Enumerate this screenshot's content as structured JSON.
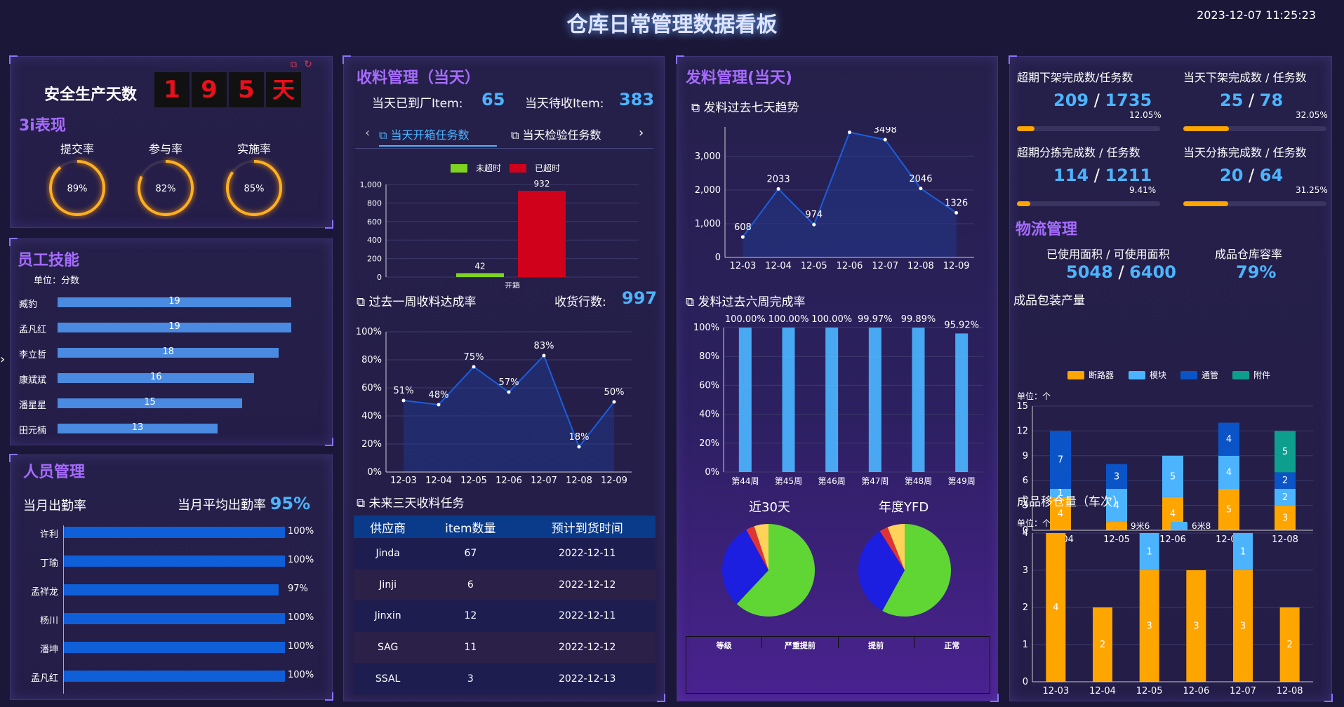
{
  "header": {
    "title": "仓库日常管理数据看板",
    "datetime": "2023-12-07 11:25:23"
  },
  "safety": {
    "label": "安全生产天数",
    "digits": [
      "1",
      "9",
      "5",
      "天"
    ]
  },
  "three_i": {
    "title": "3i表现",
    "items": [
      {
        "label": "提交率",
        "pct": 89,
        "text": "89%"
      },
      {
        "label": "参与率",
        "pct": 82,
        "text": "82%"
      },
      {
        "label": "实施率",
        "pct": 85,
        "text": "85%"
      }
    ]
  },
  "skills": {
    "title": "员工技能",
    "unit": "单位：分数",
    "max": 20,
    "rows": [
      {
        "name": "臧豹",
        "value": 19
      },
      {
        "name": "孟凡红",
        "value": 19
      },
      {
        "name": "李立哲",
        "value": 18
      },
      {
        "name": "康斌斌",
        "value": 16
      },
      {
        "name": "潘星星",
        "value": 15
      },
      {
        "name": "田元楠",
        "value": 13
      }
    ]
  },
  "staff": {
    "title": "人员管理",
    "monthly_label": "当月出勤率",
    "avg_label": "当月平均出勤率",
    "avg_value": "95%",
    "rows": [
      {
        "name": "许利",
        "pct": 100,
        "text": "100%"
      },
      {
        "name": "丁瑜",
        "pct": 100,
        "text": "100%"
      },
      {
        "name": "孟祥龙",
        "pct": 97,
        "text": "97%"
      },
      {
        "name": "杨川",
        "pct": 100,
        "text": "100%"
      },
      {
        "name": "潘坤",
        "pct": 100,
        "text": "100%"
      },
      {
        "name": "孟凡红",
        "pct": 100,
        "text": "100%"
      }
    ]
  },
  "receiving": {
    "title": "收料管理（当天）",
    "arrived_label": "当天已到厂Item:",
    "arrived": "65",
    "pending_label": "当天待收Item:",
    "pending": "383",
    "tab_prev": "‹",
    "tab_next": "›",
    "tab1": "当天开箱任务数",
    "tab2": "当天检验任务数",
    "legend_a": "未超时",
    "legend_b": "已超时",
    "week_title": "过去一周收料达成率",
    "rows_label": "收货行数:",
    "rows_value": "997",
    "future_title": "未来三天收料任务",
    "table_headers": [
      "供应商",
      "item数量",
      "预计到货时间"
    ],
    "table_rows": [
      [
        "Jinda",
        "67",
        "2022-12-11"
      ],
      [
        "Jinji",
        "6",
        "2022-12-12"
      ],
      [
        "Jinxin",
        "12",
        "2022-12-11"
      ],
      [
        "SAG",
        "11",
        "2022-12-12"
      ],
      [
        "SSAL",
        "3",
        "2022-12-13"
      ]
    ]
  },
  "shipping": {
    "title": "发料管理(当天)",
    "trend_title": "发料过去七天趋势",
    "six_title": "发料过去六周完成率",
    "pie1_label": "近30天",
    "pie2_label": "年度YFD",
    "table_headers": [
      "等级",
      "严重提前",
      "提前",
      "正常"
    ]
  },
  "right": {
    "kpis": [
      {
        "label": "超期下架完成数/任务数",
        "a": "209",
        "b": "1735",
        "pct_text": "12.05%",
        "pct": 12.05
      },
      {
        "label": "当天下架完成数 / 任务数",
        "a": "25",
        "b": "78",
        "pct_text": "32.05%",
        "pct": 32.05
      },
      {
        "label": "超期分拣完成数 / 任务数",
        "a": "114",
        "b": "1211",
        "pct_text": "9.41%",
        "pct": 9.41
      },
      {
        "label": "当天分拣完成数 / 任务数",
        "a": "20",
        "b": "64",
        "pct_text": "31.25%",
        "pct": 31.25
      }
    ],
    "sep": "/",
    "logistics_title": "物流管理",
    "area_label": "已使用面积 / 可使用面积",
    "area_used": "5048",
    "area_total": "6400",
    "capacity_label": "成品仓库容率",
    "capacity": "79%",
    "pack_title": "成品包装产量",
    "pack_unit": "单位：个",
    "move_title": "成品移仓量（车次）",
    "move_unit": "单位：个"
  },
  "colors": {
    "accent": "#4cb4ff",
    "title": "#a66bff",
    "orange": "#ffa500",
    "green": "#7ed321",
    "red": "#d0021b"
  },
  "chart_data": [
    {
      "type": "bar",
      "id": "open_box",
      "categories": [
        "开箱"
      ],
      "series": [
        {
          "name": "未超时",
          "values": [
            42
          ]
        },
        {
          "name": "已超时",
          "values": [
            932
          ]
        }
      ],
      "ylim": [
        0,
        1000
      ],
      "yticks": [
        "0",
        "200",
        "400",
        "600",
        "800",
        "1,000"
      ]
    },
    {
      "type": "area",
      "id": "receive_rate",
      "x": [
        "12-03",
        "12-04",
        "12-05",
        "12-06",
        "12-07",
        "12-08",
        "12-09"
      ],
      "values": [
        51,
        48,
        75,
        57,
        83,
        18,
        50
      ],
      "labels": [
        "51%",
        "48%",
        "75%",
        "57%",
        "83%",
        "18%",
        "50%"
      ],
      "ylim": [
        0,
        100
      ],
      "yticks": [
        "0%",
        "20%",
        "40%",
        "60%",
        "80%",
        "100%"
      ]
    },
    {
      "type": "area",
      "id": "ship_trend",
      "x": [
        "12-03",
        "12-04",
        "12-05",
        "12-06",
        "12-07",
        "12-08",
        "12-09"
      ],
      "values": [
        608,
        2033,
        974,
        3715,
        3498,
        2046,
        1326
      ],
      "ylim": [
        0,
        4000
      ],
      "yticks": [
        "0",
        "1,000",
        "2,000",
        "3,000",
        "4,000"
      ]
    },
    {
      "type": "bar",
      "id": "ship_weekly",
      "categories": [
        "第44周",
        "第45周",
        "第46周",
        "第47周",
        "第48周",
        "第49周"
      ],
      "values": [
        100,
        100,
        100,
        99.97,
        99.89,
        95.92
      ],
      "labels": [
        "100.00%",
        "100.00%",
        "100.00%",
        "99.97%",
        "99.89%",
        "95.92%"
      ],
      "ylim": [
        0,
        100
      ],
      "yticks": [
        "0%",
        "20%",
        "40%",
        "60%",
        "80%",
        "100%"
      ]
    },
    {
      "type": "pie",
      "id": "pie30",
      "values": [
        62,
        30,
        3,
        5
      ],
      "colors": [
        "#5fd634",
        "#1c1ee0",
        "#e03434",
        "#ffd25a"
      ]
    },
    {
      "type": "pie",
      "id": "pieYFD",
      "values": [
        58,
        33,
        3,
        6
      ],
      "colors": [
        "#5fd634",
        "#1c1ee0",
        "#e03434",
        "#ffd25a"
      ]
    },
    {
      "type": "bar",
      "id": "pack",
      "stacked": true,
      "categories": [
        "12-04",
        "12-05",
        "12-06",
        "12-07",
        "12-08"
      ],
      "series": [
        {
          "name": "断路器",
          "color": "#ffa500",
          "values": [
            4,
            1,
            4,
            5,
            3
          ]
        },
        {
          "name": "模块",
          "color": "#4cb4ff",
          "values": [
            1,
            4,
            5,
            4,
            2
          ]
        },
        {
          "name": "通管",
          "color": "#0a54c8",
          "values": [
            7,
            3,
            0,
            4,
            2
          ]
        },
        {
          "name": "附件",
          "color": "#0e9e8e",
          "values": [
            0,
            0,
            0,
            0,
            5
          ]
        }
      ],
      "ylim": [
        0,
        15
      ],
      "yticks": [
        "0",
        "3",
        "6",
        "9",
        "12",
        "15"
      ]
    },
    {
      "type": "bar",
      "id": "move",
      "stacked": true,
      "categories": [
        "12-03",
        "12-04",
        "12-05",
        "12-06",
        "12-07",
        "12-08"
      ],
      "series": [
        {
          "name": "9米6",
          "color": "#ffa500",
          "values": [
            4,
            2,
            3,
            3,
            3,
            2
          ]
        },
        {
          "name": "6米8",
          "color": "#4cb4ff",
          "values": [
            0,
            0,
            1,
            0,
            1,
            0
          ]
        }
      ],
      "ylim": [
        0,
        4
      ],
      "yticks": [
        "0",
        "1",
        "2",
        "3",
        "4"
      ]
    }
  ]
}
